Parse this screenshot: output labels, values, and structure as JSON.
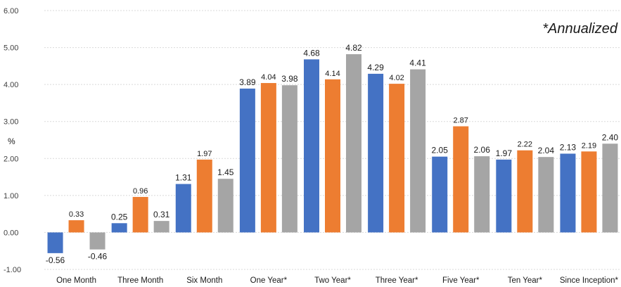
{
  "chart_data": {
    "type": "bar",
    "title": "",
    "xlabel": "",
    "ylabel": "%",
    "annotation": "*Annualized",
    "ylim": [
      -1.0,
      6.0
    ],
    "yticks": [
      "-1.00",
      "0.00",
      "1.00",
      "2.00",
      "3.00",
      "4.00",
      "5.00",
      "6.00"
    ],
    "grid": true,
    "legend": "none",
    "categories": [
      "One Month",
      "Three Month",
      "Six Month",
      "One Year*",
      "Two Year*",
      "Three Year*",
      "Five Year*",
      "Ten Year*",
      "Since Inception*"
    ],
    "series": [
      {
        "color": "#4472C4",
        "values": [
          -0.56,
          0.25,
          1.31,
          3.89,
          4.68,
          4.29,
          2.05,
          1.97,
          2.13
        ],
        "labels": [
          "-0.56",
          "0.25",
          "1.31",
          "3.89",
          "4.68",
          "4.29",
          "2.05",
          "1.97",
          "2.13"
        ]
      },
      {
        "color": "#ED7D31",
        "values": [
          0.33,
          0.96,
          1.97,
          4.04,
          4.14,
          4.02,
          2.87,
          2.22,
          2.19
        ],
        "labels": [
          "0.33",
          "0.96",
          "1.97",
          "4.04",
          "4.14",
          "4.02",
          "2.87",
          "2.22",
          "2.19"
        ]
      },
      {
        "color": "#A5A5A5",
        "values": [
          -0.46,
          0.31,
          1.45,
          3.98,
          4.82,
          4.41,
          2.06,
          2.04,
          2.4
        ],
        "labels": [
          "-0.46",
          "0.31",
          "1.45",
          "3.98",
          "4.82",
          "4.41",
          "2.06",
          "2.04",
          "2.40"
        ]
      }
    ]
  }
}
